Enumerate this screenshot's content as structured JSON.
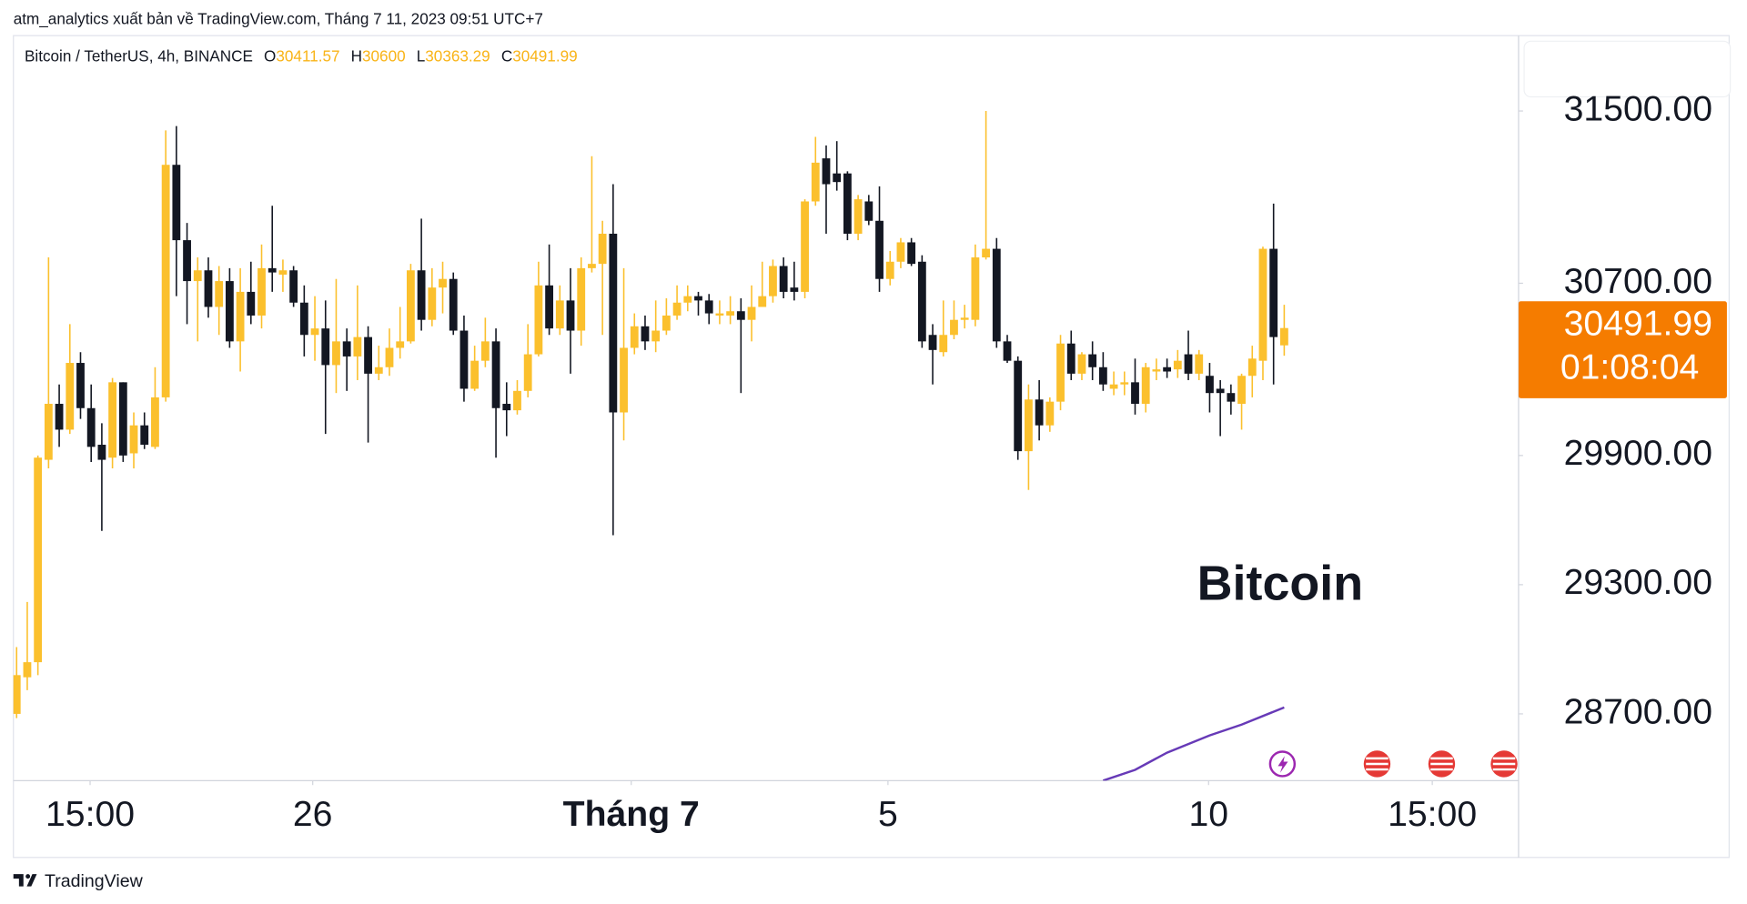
{
  "header": "atm_analytics xuất bản về TradingView.com, Tháng 7 11, 2023 09:51 UTC+7",
  "footer": {
    "brand": "TradingView"
  },
  "chart_data": {
    "type": "candlestick",
    "symbol": "Bitcoin / TetherUS, 4h, BINANCE",
    "ohlc_labels": [
      "O",
      "H",
      "L",
      "C"
    ],
    "annotation": "Bitcoin",
    "up_color": "#fbc02d",
    "down_color": "#131722",
    "open": [
      28700,
      28870,
      28940,
      29880,
      30140,
      30020,
      30330,
      30120,
      29950,
      29890,
      30240,
      29910,
      30040,
      29940,
      30170,
      31250,
      30900,
      30710,
      30760,
      30590,
      30710,
      30430,
      30660,
      30550,
      30770,
      30740,
      30760,
      30610,
      30460,
      30490,
      30320,
      30430,
      30360,
      30450,
      30280,
      30310,
      30400,
      30430,
      30760,
      30530,
      30680,
      30720,
      30480,
      30210,
      30340,
      30430,
      30140,
      30110,
      30200,
      30370,
      30690,
      30490,
      30620,
      30480,
      30770,
      30790,
      30930,
      30100,
      30400,
      30500,
      30430,
      30480,
      30550,
      30610,
      30640,
      30620,
      30550,
      30550,
      30570,
      30530,
      30590,
      30640,
      30780,
      30680,
      30660,
      31080,
      31280,
      31210,
      31210,
      30930,
      31080,
      30990,
      30720,
      30800,
      30890,
      30800,
      30460,
      30380,
      30460,
      30530,
      30530,
      30820,
      30860,
      30430,
      30340,
      29920,
      30160,
      30040,
      30150,
      30420,
      30280,
      30370,
      30310,
      30210,
      30230,
      30240,
      30140,
      30290,
      30310,
      30300,
      30370,
      30280,
      30270,
      30210,
      30190,
      30140,
      30270,
      30340,
      30860,
      30411.57
    ],
    "high": [
      29010,
      29220,
      29900,
      30820,
      30230,
      30510,
      30380,
      30230,
      30050,
      30260,
      30240,
      30100,
      30100,
      30310,
      31410,
      31430,
      30980,
      30820,
      30820,
      30780,
      30770,
      30770,
      30800,
      30880,
      31060,
      30810,
      30780,
      30690,
      30640,
      30620,
      30720,
      30490,
      30690,
      30500,
      30410,
      30490,
      30590,
      30790,
      31000,
      30770,
      30800,
      30750,
      30550,
      30410,
      30540,
      30490,
      30240,
      30250,
      30510,
      30800,
      30880,
      30690,
      30770,
      30820,
      31290,
      30990,
      31160,
      30770,
      30560,
      30550,
      30620,
      30630,
      30690,
      30690,
      30660,
      30650,
      30620,
      30640,
      30630,
      30690,
      30800,
      30810,
      30820,
      30800,
      31090,
      31380,
      31340,
      31360,
      31220,
      31110,
      31110,
      31150,
      30850,
      30910,
      30910,
      30830,
      30510,
      30620,
      30620,
      30600,
      30880,
      31500,
      30910,
      30460,
      30360,
      30230,
      30250,
      30170,
      30460,
      30480,
      30380,
      30430,
      30380,
      30290,
      30290,
      30350,
      30330,
      30350,
      30350,
      30390,
      30480,
      30390,
      30330,
      30250,
      30230,
      30280,
      30410,
      30870,
      31070,
      30600
    ],
    "low": [
      28680,
      28810,
      28880,
      29840,
      29940,
      30000,
      30070,
      29870,
      29550,
      29840,
      29870,
      29840,
      29930,
      29930,
      30150,
      30640,
      30510,
      30430,
      30540,
      30460,
      30400,
      30290,
      30510,
      30490,
      30660,
      30660,
      30590,
      30360,
      30340,
      30000,
      30190,
      30200,
      30250,
      29960,
      30250,
      30270,
      30350,
      30420,
      30480,
      30500,
      30560,
      30460,
      30150,
      30200,
      30310,
      29890,
      29990,
      30090,
      30170,
      30360,
      30460,
      30460,
      30280,
      30410,
      30750,
      30460,
      29530,
      29970,
      30370,
      30390,
      30380,
      30460,
      30530,
      30570,
      30550,
      30510,
      30510,
      30510,
      30190,
      30430,
      30590,
      30610,
      30630,
      30620,
      30630,
      31060,
      30930,
      31130,
      30900,
      30900,
      30970,
      30660,
      30690,
      30770,
      30780,
      30400,
      30230,
      30360,
      30440,
      30490,
      30500,
      30810,
      30400,
      30330,
      29880,
      29740,
      29970,
      30010,
      30110,
      30250,
      30250,
      30250,
      30200,
      30180,
      30180,
      30090,
      30100,
      30250,
      30260,
      30260,
      30250,
      30250,
      30100,
      29990,
      30090,
      30020,
      30170,
      30250,
      30230,
      30363.29
    ],
    "close": [
      28880,
      28940,
      29890,
      30140,
      30020,
      30330,
      30120,
      29940,
      29880,
      30240,
      29900,
      30040,
      29950,
      30170,
      31250,
      30900,
      30710,
      30760,
      30590,
      30710,
      30430,
      30660,
      30550,
      30770,
      30750,
      30760,
      30610,
      30460,
      30490,
      30320,
      30430,
      30360,
      30450,
      30280,
      30310,
      30400,
      30430,
      30760,
      30530,
      30680,
      30720,
      30480,
      30210,
      30340,
      30430,
      30120,
      30110,
      30200,
      30370,
      30690,
      30490,
      30620,
      30480,
      30770,
      30790,
      30930,
      30100,
      30400,
      30500,
      30430,
      30480,
      30550,
      30610,
      30640,
      30620,
      30560,
      30560,
      30570,
      30530,
      30590,
      30640,
      30780,
      30660,
      30660,
      31080,
      31260,
      31160,
      31170,
      30930,
      31090,
      30990,
      30720,
      30800,
      30890,
      30790,
      30430,
      30390,
      30460,
      30530,
      30540,
      30820,
      30860,
      30430,
      30340,
      29920,
      30160,
      30040,
      30150,
      30420,
      30280,
      30370,
      30310,
      30230,
      30230,
      30240,
      30140,
      30310,
      30300,
      30290,
      30340,
      30280,
      30370,
      30190,
      30190,
      30150,
      30270,
      30350,
      30860,
      30450,
      30491.99
    ],
    "xlim": [
      -0.3,
      141
    ],
    "xticks": [
      {
        "value": 6.9,
        "label": "15:00"
      },
      {
        "value": 27.8,
        "label": "26"
      },
      {
        "value": 57.7,
        "label": "Tháng 7",
        "bold": true
      },
      {
        "value": 81.8,
        "label": "5"
      },
      {
        "value": 111.9,
        "label": "10"
      },
      {
        "value": 132.9,
        "label": "15:00"
      }
    ],
    "ylim": [
      28390,
      31850
    ],
    "yticks": [
      {
        "value": 31500,
        "label": "31500.00"
      },
      {
        "value": 30700,
        "label": "30700.00"
      },
      {
        "value": 29900,
        "label": "29900.00"
      },
      {
        "value": 29300,
        "label": "29300.00"
      },
      {
        "value": 28700,
        "label": "28700.00"
      }
    ],
    "last_price": {
      "countdown": "01:08:04",
      "color": "#f57c00"
    },
    "indicator": {
      "color": "#673ab7",
      "x": [
        102,
        105,
        108,
        112,
        115,
        119
      ],
      "values": [
        28390,
        28440,
        28520,
        28600,
        28650,
        28730
      ]
    }
  }
}
